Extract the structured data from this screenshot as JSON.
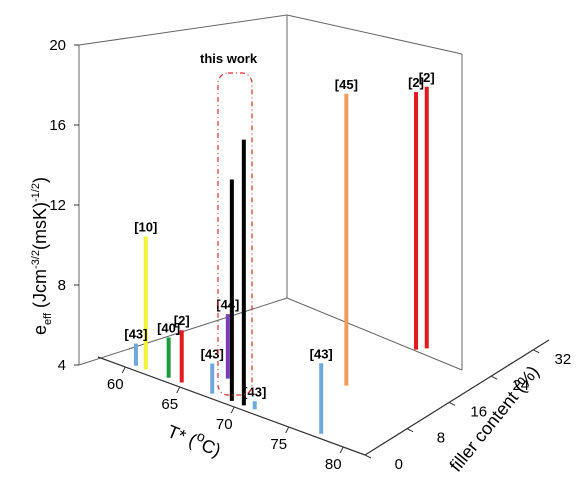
{
  "chart_data": {
    "type": "bar3d",
    "xlabel": "T* (°C)",
    "ylabel": "filler content (%)",
    "zlabel": "e_eff (Jcm^-3/2 (msK)^-1/2)",
    "x_ticks": [
      60,
      65,
      70,
      75,
      80
    ],
    "y_ticks": [
      0,
      8,
      16,
      24,
      32
    ],
    "z_ticks": [
      4,
      8,
      12,
      16,
      20
    ],
    "xlim": [
      57.5,
      82
    ],
    "ylim": [
      0,
      35
    ],
    "zlim": [
      4,
      20
    ],
    "grid": false,
    "annotations": [
      {
        "text": "this work",
        "target": "black bars, dashed red box"
      }
    ],
    "bars": [
      {
        "label": "[43]",
        "x": 60.5,
        "y": 1,
        "z0": 4,
        "z1": 5.1,
        "color": "#6fa8dc"
      },
      {
        "label": "[10]",
        "x": 61.4,
        "y": 1,
        "z0": 4,
        "z1": 10.6,
        "color": "#f2f23a"
      },
      {
        "label": "[40]",
        "x": 63.5,
        "y": 1,
        "z0": 4,
        "z1": 6.0,
        "color": "#1a9c3e"
      },
      {
        "label": "[2]",
        "x": 64.7,
        "y": 1,
        "z0": 4,
        "z1": 6.6,
        "color": "#e31a1c"
      },
      {
        "label": "[43]",
        "x": 67.5,
        "y": 1,
        "z0": 4,
        "z1": 5.5,
        "color": "#6fa8dc"
      },
      {
        "label": "[44]",
        "x": 67.0,
        "y": 5,
        "z0": 4,
        "z1": 7.2,
        "color": "#7b3fb5"
      },
      {
        "label": "",
        "x": 69.3,
        "y": 1,
        "z0": 4,
        "z1": 15.0,
        "color": "#000000"
      },
      {
        "label": "",
        "x": 70.4,
        "y": 1,
        "z0": 4,
        "z1": 17.2,
        "color": "#000000"
      },
      {
        "label": "[43]",
        "x": 71.4,
        "y": 1,
        "z0": 4,
        "z1": 4.4,
        "color": "#6fa8dc"
      },
      {
        "label": "[43]",
        "x": 77.5,
        "y": 1,
        "z0": 4,
        "z1": 7.5,
        "color": "#6fa8dc"
      },
      {
        "label": "[45]",
        "x": 74.5,
        "y": 12,
        "z0": 4,
        "z1": 18.5,
        "color": "#f39c5a"
      },
      {
        "label": "[2]",
        "x": 78.0,
        "y": 18,
        "z0": 5.5,
        "z1": 18.3,
        "color": "#e31a1c"
      },
      {
        "label": "[2]",
        "x": 78.5,
        "y": 19,
        "z0": 5.5,
        "z1": 18.5,
        "color": "#e31a1c"
      }
    ]
  }
}
